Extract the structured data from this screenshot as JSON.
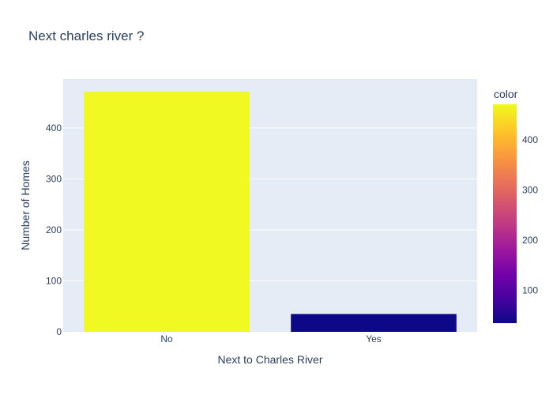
{
  "chart_data": {
    "type": "bar",
    "title": "Next charles river ?",
    "xlabel": "Next to Charles River",
    "ylabel": "Number of Homes",
    "categories": [
      "No",
      "Yes"
    ],
    "values": [
      471,
      35
    ],
    "ylim": [
      0,
      496
    ],
    "yticks": [
      0,
      100,
      200,
      300,
      400
    ],
    "grid": true,
    "colorbar": {
      "title": "color",
      "range": [
        35,
        471
      ],
      "ticks": [
        100,
        200,
        300,
        400
      ],
      "colorscale": [
        "#0d0887",
        "#46039f",
        "#7201a8",
        "#9c179e",
        "#bd3786",
        "#d8576b",
        "#ed7953",
        "#fb9f3a",
        "#fdca26",
        "#f0f921"
      ]
    },
    "colors": {
      "plot_background": "#e5ecf6",
      "grid": "#ffffff",
      "text": "#2a3f5f"
    }
  }
}
